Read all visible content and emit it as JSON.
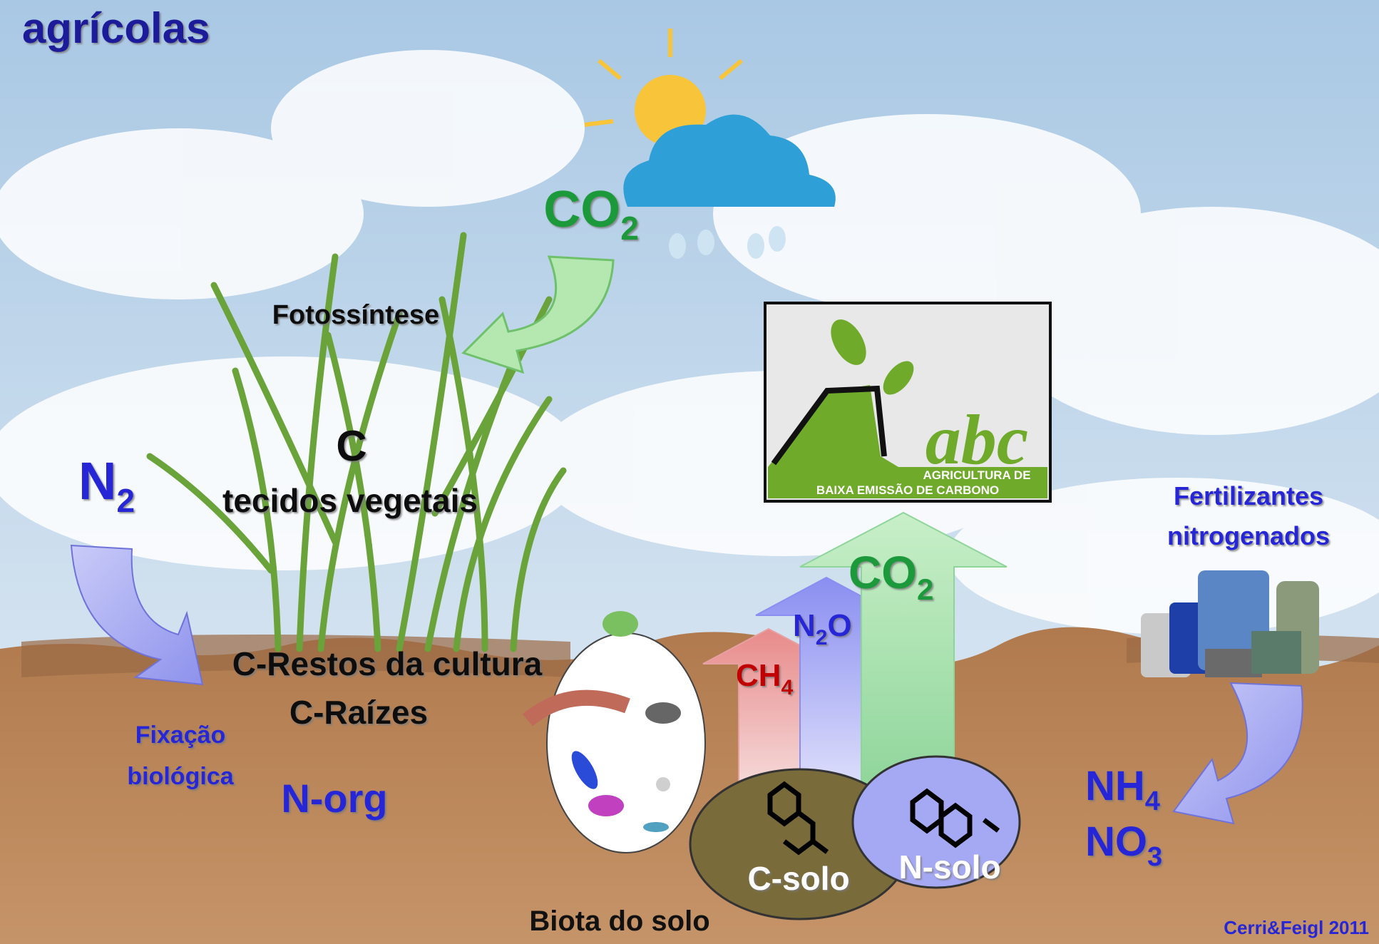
{
  "header": {
    "title": "agrícolas"
  },
  "labels": {
    "co2_top": [
      "CO",
      "2"
    ],
    "photosynthesis": "Fotossíntese",
    "carbon": "C",
    "plant_tissue": "tecidos vegetais",
    "n2": [
      "N",
      "2"
    ],
    "crop_residue": "C-Restos da cultura",
    "roots": "C-Raízes",
    "fixation": [
      "Fixação",
      "biológica"
    ],
    "n_org": "N-org",
    "soil_biota": "Biota do solo",
    "ch4": [
      "CH",
      "4"
    ],
    "n2o": [
      "N",
      "2",
      "O"
    ],
    "co2_soil": [
      "CO",
      "2"
    ],
    "c_soil": "C-solo",
    "n_soil": "N-solo",
    "fertilizers": [
      "Fertilizantes",
      "nitrogenados"
    ],
    "nh4": [
      "NH",
      "4"
    ],
    "no3": [
      "NO",
      "3"
    ]
  },
  "logo": {
    "mark": "abc",
    "line1": "AGRICULTURA DE",
    "line2": "BAIXA EMISSÃO DE CARBONO"
  },
  "credit": "Cerri&Feigl 2011"
}
